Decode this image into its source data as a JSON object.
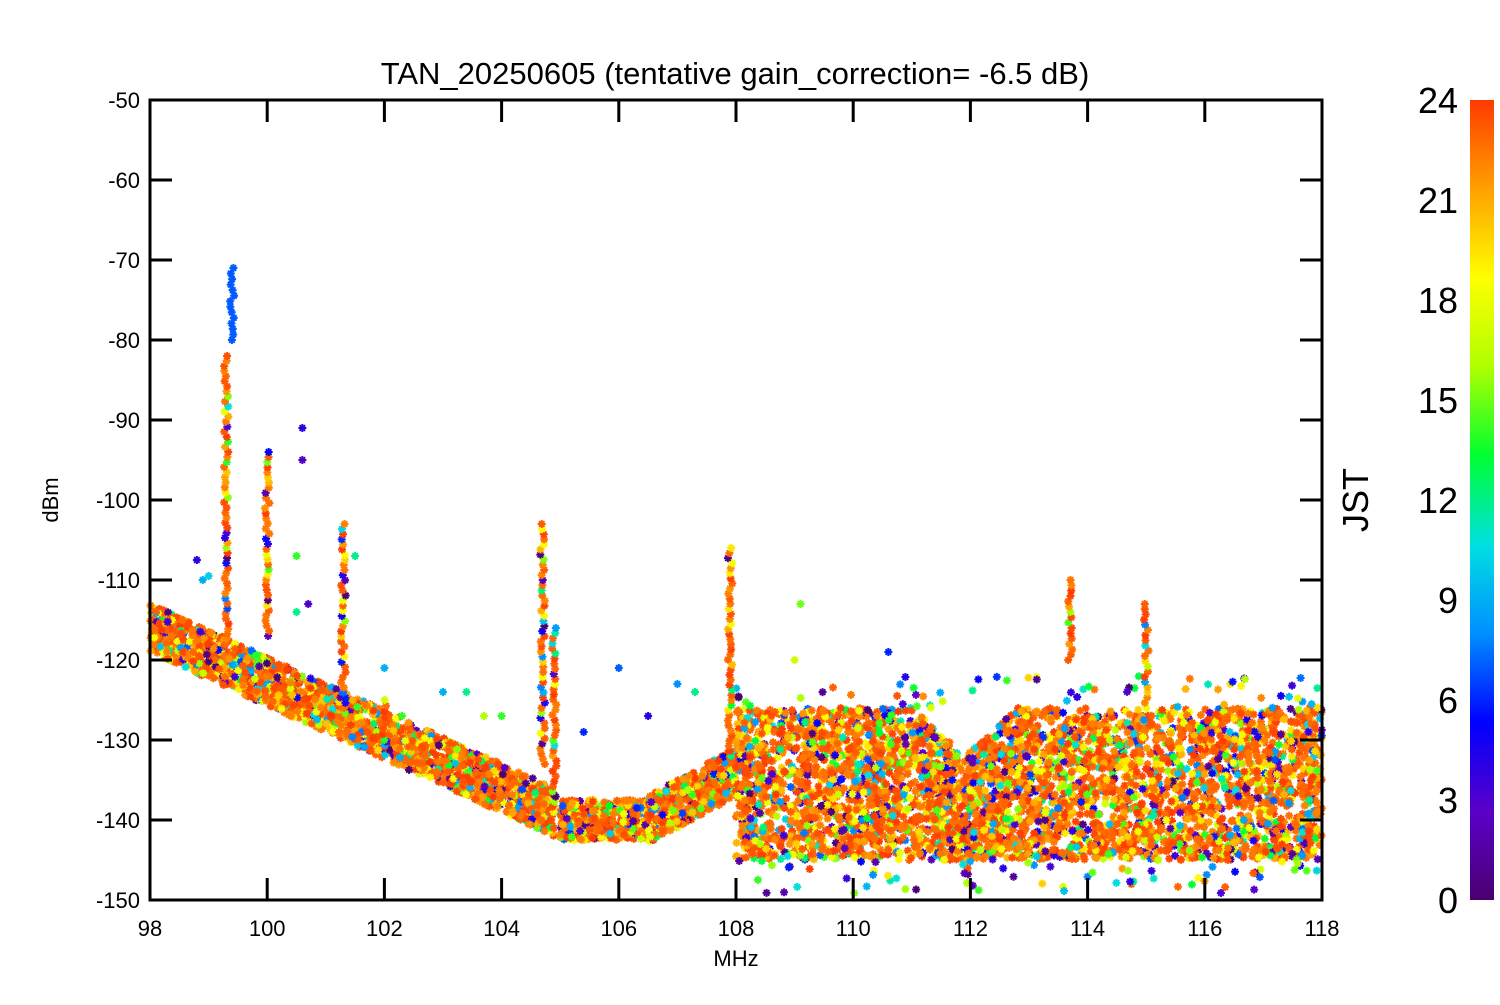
{
  "chart_data": {
    "type": "scatter",
    "title": "TAN_20250605 (tentative gain_correction= -6.5 dB)",
    "xlabel": "MHz",
    "ylabel": "dBm",
    "xlim": [
      98,
      118
    ],
    "ylim": [
      -150,
      -50
    ],
    "xticks": [
      98,
      100,
      102,
      104,
      106,
      108,
      110,
      112,
      114,
      116,
      118
    ],
    "yticks": [
      -50,
      -60,
      -70,
      -80,
      -90,
      -100,
      -110,
      -120,
      -130,
      -140,
      -150
    ],
    "grid": false,
    "marker": "asterisk",
    "colorbar": {
      "label": "JST",
      "range": [
        0,
        24
      ],
      "ticks": [
        0,
        3,
        6,
        9,
        12,
        15,
        18,
        21,
        24
      ],
      "colormap": "rainbow",
      "stops": [
        "#4a0070",
        "#5a00c8",
        "#0000ff",
        "#0090ff",
        "#00e0e0",
        "#00ff30",
        "#b0ff00",
        "#ffff00",
        "#ffa000",
        "#ff3a00"
      ]
    },
    "dominant_color": "#ff3a00",
    "baseline_segments": [
      {
        "x": [
          98.0,
          104.9
        ],
        "y": [
          -116,
          -139
        ],
        "note": "falling noise floor"
      },
      {
        "x": [
          105.0,
          106.5
        ],
        "y": [
          -140,
          -140
        ]
      },
      {
        "x": [
          106.5,
          108.0
        ],
        "y": [
          -140,
          -134
        ]
      },
      {
        "x": [
          108.0,
          118.0
        ],
        "y_low": -145,
        "y_high": -126,
        "note": "wide noise band"
      }
    ],
    "spikes": [
      {
        "x": 99.3,
        "y_top": -82,
        "y_bottom": -118
      },
      {
        "x": 99.4,
        "y_top": -71,
        "y_bottom": -80,
        "jst": 7
      },
      {
        "x": 100.0,
        "y_top": -94,
        "y_bottom": -117
      },
      {
        "x": 101.3,
        "y_top": -103,
        "y_bottom": -126
      },
      {
        "x": 102.0,
        "y_top": -125,
        "y_bottom": -130
      },
      {
        "x": 104.7,
        "y_top": -103,
        "y_bottom": -133
      },
      {
        "x": 104.9,
        "y_top": -116,
        "y_bottom": -139
      },
      {
        "x": 107.9,
        "y_top": -106,
        "y_bottom": -132
      },
      {
        "x": 113.7,
        "y_top": -110,
        "y_bottom": -120
      },
      {
        "x": 115.0,
        "y_top": -113,
        "y_bottom": -126
      }
    ],
    "scattered_points": [
      {
        "x": 98.8,
        "y": -107.5,
        "jst": 4
      },
      {
        "x": 98.9,
        "y": -110,
        "jst": 9
      },
      {
        "x": 99.0,
        "y": -109.5,
        "jst": 10
      },
      {
        "x": 100.5,
        "y": -107,
        "jst": 14
      },
      {
        "x": 100.6,
        "y": -91,
        "jst": 4
      },
      {
        "x": 100.6,
        "y": -95,
        "jst": 3
      },
      {
        "x": 100.7,
        "y": -113,
        "jst": 3
      },
      {
        "x": 100.5,
        "y": -114,
        "jst": 12
      },
      {
        "x": 101.5,
        "y": -107,
        "jst": 12
      },
      {
        "x": 102.0,
        "y": -121,
        "jst": 9
      },
      {
        "x": 102.3,
        "y": -127,
        "jst": 14
      },
      {
        "x": 103.0,
        "y": -124,
        "jst": 9
      },
      {
        "x": 103.4,
        "y": -124,
        "jst": 12
      },
      {
        "x": 103.7,
        "y": -127,
        "jst": 16
      },
      {
        "x": 104.0,
        "y": -127,
        "jst": 14
      },
      {
        "x": 105.4,
        "y": -129,
        "jst": 6
      },
      {
        "x": 106.0,
        "y": -121,
        "jst": 7
      },
      {
        "x": 106.5,
        "y": -127,
        "jst": 4
      },
      {
        "x": 107.0,
        "y": -123,
        "jst": 8
      },
      {
        "x": 107.3,
        "y": -124,
        "jst": 12
      },
      {
        "x": 109.1,
        "y": -113,
        "jst": 15
      },
      {
        "x": 109.0,
        "y": -120,
        "jst": 17
      },
      {
        "x": 110.6,
        "y": -119,
        "jst": 6
      }
    ]
  }
}
